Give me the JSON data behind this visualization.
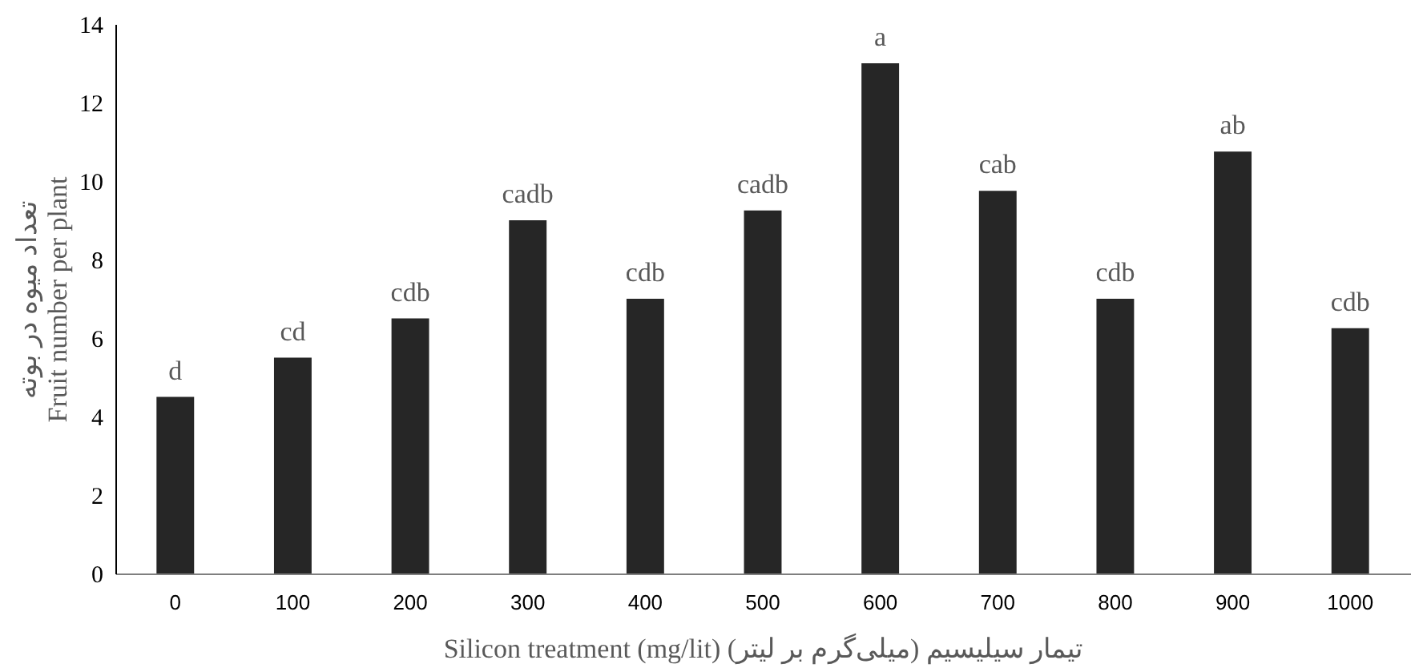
{
  "chart_data": {
    "type": "bar",
    "categories": [
      "0",
      "100",
      "200",
      "300",
      "400",
      "500",
      "600",
      "700",
      "800",
      "900",
      "1000"
    ],
    "values": [
      4.5,
      5.5,
      6.5,
      9,
      7,
      9.25,
      13,
      9.75,
      7,
      10.75,
      6.25
    ],
    "color": "#262626",
    "ylabel": "تعداد میوه در بوته\nFruit number per plant",
    "xlabel": "Silicon treatment (mg/lit) تیمار سیلیسیم (میلی‌گرم بر لیتر)",
    "ylim": [
      0,
      14
    ],
    "yticks": [
      0,
      2,
      4,
      6,
      8,
      10,
      12,
      14
    ],
    "grid": false,
    "annotations": [
      {
        "text": "d",
        "x": "0",
        "y": 4.5
      },
      {
        "text": "cd",
        "x": "100",
        "y": 5.5
      },
      {
        "text": "cdb",
        "x": "200",
        "y": 6.5
      },
      {
        "text": "cadb",
        "x": "300",
        "y": 9
      },
      {
        "text": "cdb",
        "x": "400",
        "y": 7
      },
      {
        "text": "cadb",
        "x": "500",
        "y": 9.25
      },
      {
        "text": "a",
        "x": "600",
        "y": 13
      },
      {
        "text": "cab",
        "x": "700",
        "y": 9.75
      },
      {
        "text": "cdb",
        "x": "800",
        "y": 7
      },
      {
        "text": "ab",
        "x": "900",
        "y": 10.75
      },
      {
        "text": "cdb",
        "x": "1000",
        "y": 6.25
      }
    ]
  }
}
